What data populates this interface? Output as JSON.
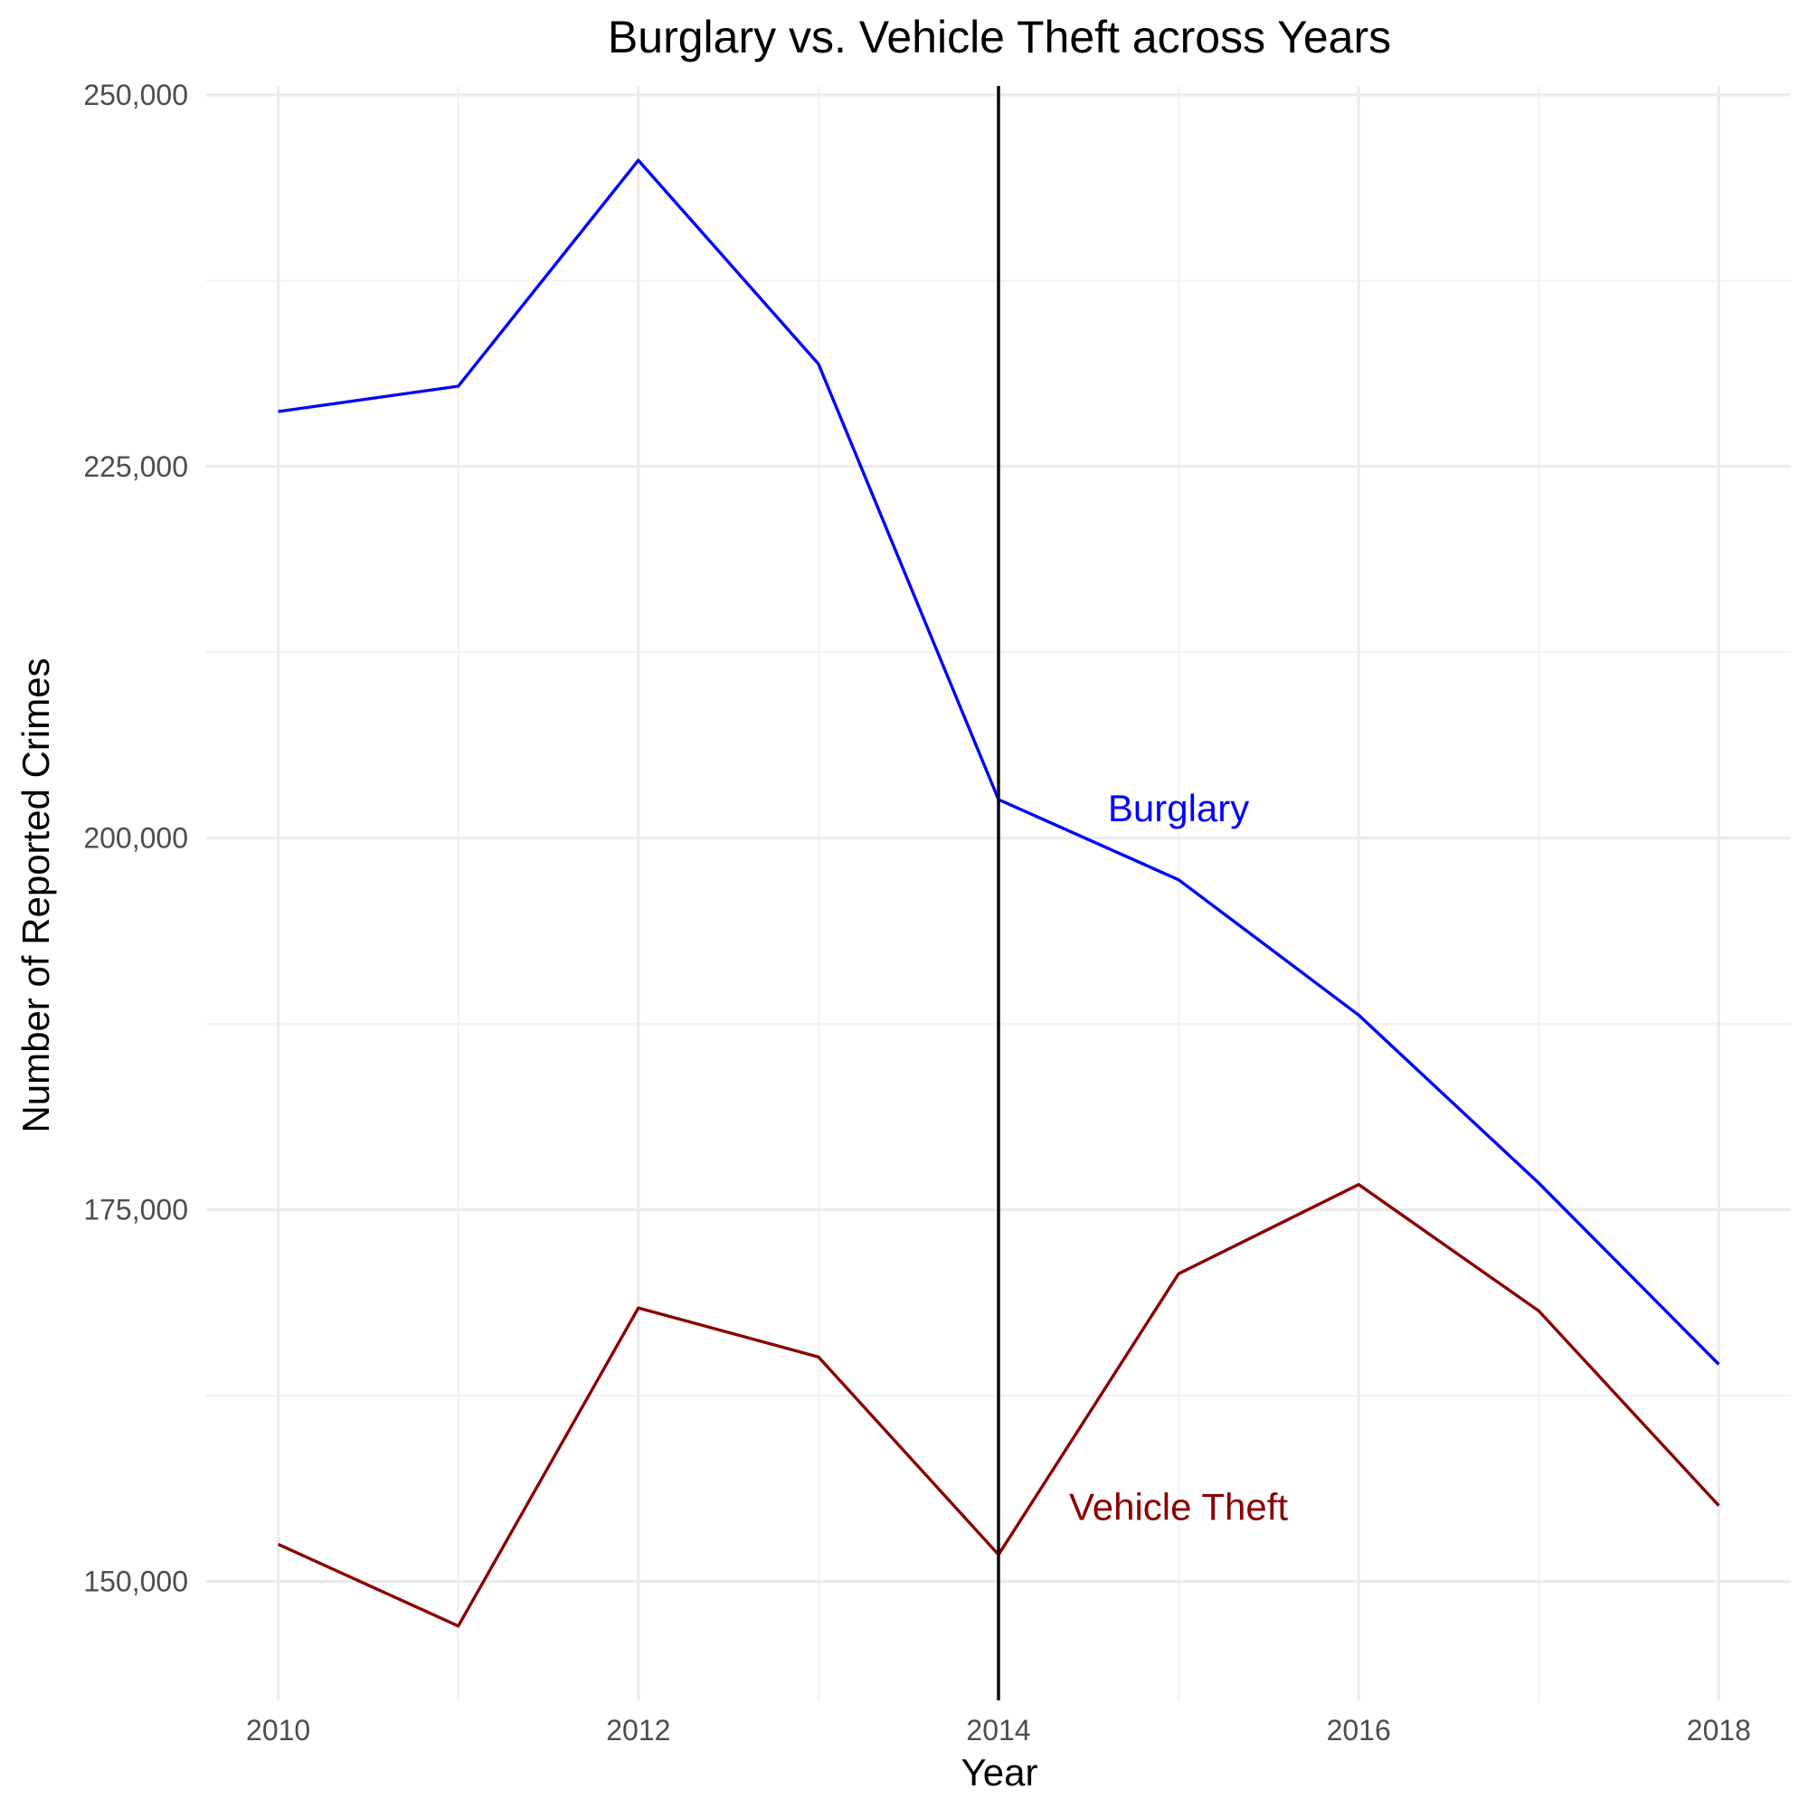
{
  "chart_data": {
    "type": "line",
    "title": "Burglary vs. Vehicle Theft across Years",
    "xlabel": "Year",
    "ylabel": "Number of Reported Crimes",
    "x": [
      2010,
      2011,
      2012,
      2013,
      2014,
      2015,
      2016,
      2017,
      2018
    ],
    "x_ticks": [
      2010,
      2012,
      2014,
      2016,
      2018
    ],
    "x_tick_labels": [
      "2010",
      "2012",
      "2014",
      "2016",
      "2018"
    ],
    "y_ticks": [
      150000,
      175000,
      200000,
      225000,
      250000
    ],
    "y_tick_labels": [
      "150,000",
      "175,000",
      "200,000",
      "225,000",
      "250,000"
    ],
    "xlim": [
      2009.6,
      2018.4
    ],
    "ylim": [
      142000,
      250600
    ],
    "grid": true,
    "legend": "none",
    "series": [
      {
        "name": "Burglary",
        "color": "#0000ff",
        "values": [
          228700,
          230400,
          245600,
          231900,
          202600,
          197200,
          188100,
          176800,
          164600
        ]
      },
      {
        "name": "Vehicle Theft",
        "color": "#8b0000",
        "values": [
          152500,
          147000,
          168400,
          165100,
          151800,
          170700,
          176700,
          168200,
          155100
        ]
      }
    ],
    "annotations": [
      {
        "text": "Burglary",
        "x": 2015.0,
        "y": 202000,
        "color": "#0000ff"
      },
      {
        "text": "Vehicle Theft",
        "x": 2015.0,
        "y": 155000,
        "color": "#8b0000"
      }
    ],
    "vline": {
      "x": 2014,
      "color": "#000000"
    }
  }
}
